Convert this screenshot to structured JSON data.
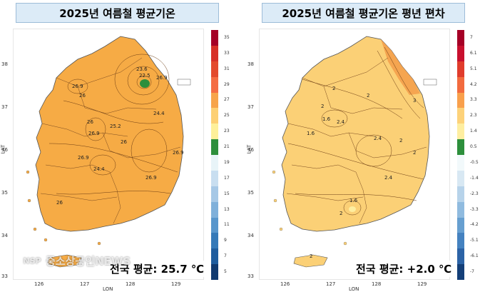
{
  "panels": [
    {
      "title": "2025년 여름철 평균기온",
      "avg_text": "전국 평균: 25.7 ℃",
      "legend_labels": [
        "35",
        "33",
        "31",
        "29",
        "27",
        "25",
        "23",
        "21",
        "19",
        "17",
        "15",
        "13",
        "11",
        "9",
        "7",
        "5"
      ],
      "contour_labels": [
        "23.6",
        "22.5",
        "26.9",
        "26.9",
        "26",
        "26",
        "26.9",
        "25.2",
        "24.4",
        "26.9",
        "24.4",
        "26.9",
        "26",
        "26.9",
        "26"
      ]
    },
    {
      "title": "2025년 여름철 평균기온 평년 편차",
      "avg_text": "전국 평균: +2.0 ℃",
      "legend_labels": [
        "7",
        "6.1",
        "5.1",
        "4.2",
        "3.3",
        "2.3",
        "1.4",
        "0.5",
        "-0.5",
        "-1.4",
        "-2.3",
        "-3.3",
        "-4.2",
        "-5.1",
        "-6.1",
        "-7"
      ],
      "contour_labels": [
        "2",
        "2",
        "2",
        "1.6",
        "2.4",
        "3",
        "1.6",
        "2.4",
        "2",
        "2",
        "2.4",
        "1.6",
        "2",
        "2"
      ]
    }
  ],
  "axes": {
    "lat_ticks": [
      "38",
      "37",
      "36",
      "35",
      "34",
      "33"
    ],
    "lon_ticks": [
      "126",
      "127",
      "128",
      "129"
    ],
    "xlabel": "LON",
    "ylabel": "LAT"
  },
  "watermark": {
    "logo": "NSP",
    "text": "중소상공인NEWS"
  },
  "colors": {
    "temp_scale": [
      "#a50026",
      "#d73027",
      "#e34a2d",
      "#f46d43",
      "#f7a44a",
      "#fdd074",
      "#fef09a",
      "#2d8f3c",
      "#e8f4f8",
      "#c8def0",
      "#a6c8e6",
      "#7fb0da",
      "#5896cc",
      "#3579b8",
      "#1f5d9e",
      "#103a70"
    ],
    "anom_scale": [
      "#a50026",
      "#c8102e",
      "#e03c2c",
      "#f26b3e",
      "#f9a04c",
      "#fdd27a",
      "#feeea0",
      "#2d8f3c",
      "#f2f9fb",
      "#d8e8f3",
      "#b7d3ea",
      "#90bbdf",
      "#679fd0",
      "#4582c0",
      "#2c63a6",
      "#143f78"
    ],
    "land_temp": "#f6ab45",
    "land_anom": "#fbd076"
  }
}
